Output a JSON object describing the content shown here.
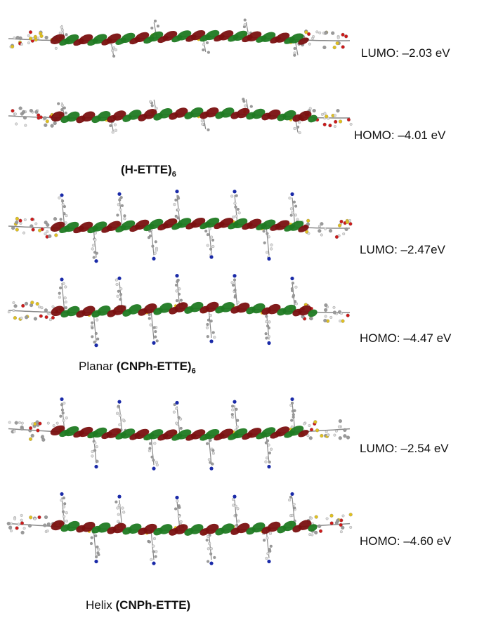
{
  "orbitals": [
    {
      "label": "LUMO: –2.03 eV",
      "kind": "LUMO",
      "conformation": "planar",
      "pendant": false
    },
    {
      "label": "HOMO: –4.01 eV",
      "kind": "HOMO",
      "conformation": "planar",
      "pendant": false
    },
    {
      "label": "LUMO: –2.47eV",
      "kind": "LUMO",
      "conformation": "planar",
      "pendant": true
    },
    {
      "label": "HOMO: –4.47 eV",
      "kind": "HOMO",
      "conformation": "planar",
      "pendant": true
    },
    {
      "label": "LUMO: –2.54 eV",
      "kind": "LUMO",
      "conformation": "helix",
      "pendant": true
    },
    {
      "label": "HOMO: –4.60 eV",
      "kind": "HOMO",
      "conformation": "helix",
      "pendant": true
    }
  ],
  "captions": [
    {
      "prefix": "",
      "name": "(H-ETTE)",
      "subscript": "6"
    },
    {
      "prefix": "Planar ",
      "name": "(CNPh-ETTE)",
      "subscript": "6"
    },
    {
      "prefix": "Helix ",
      "name": "(CNPh-ETTE)",
      "subscript": ""
    }
  ],
  "colors": {
    "lobe_red": "#7a1010",
    "lobe_green": "#1f7a22",
    "carbon": "#9a9a9a",
    "hydrogen": "#dcdcdc",
    "sulfur": "#e0c020",
    "oxygen": "#cc1a1a",
    "nitrogen": "#1a2aa8",
    "bond": "#8a8a8a"
  }
}
